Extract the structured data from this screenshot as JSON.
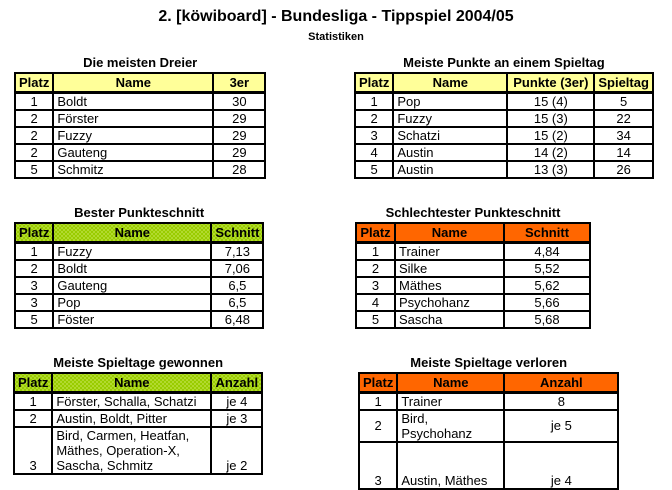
{
  "header": {
    "title": "2. [köwiboard] - Bundesliga - Tippspiel 2004/05",
    "subtitle": "Statistiken"
  },
  "colors": {
    "header_yellow": "#FFFF99",
    "header_green": "#99CC00",
    "header_orange": "#FF6600",
    "border": "#000000",
    "row_background": "#FFFFFF",
    "text": "#000000"
  },
  "tables": [
    {
      "title": "Die meisten Dreier",
      "header_style": "yellow",
      "columns": [
        "Platz",
        "Name",
        "3er"
      ],
      "rows": [
        [
          "1",
          "Boldt",
          "30"
        ],
        [
          "2",
          "Förster",
          "29"
        ],
        [
          "2",
          "Fuzzy",
          "29"
        ],
        [
          "2",
          "Gauteng",
          "29"
        ],
        [
          "5",
          "Schmitz",
          "28"
        ]
      ]
    },
    {
      "title": "Meiste Punkte an einem Spieltag",
      "header_style": "yellow",
      "columns": [
        "Platz",
        "Name",
        "Punkte (3er)",
        "Spieltag"
      ],
      "rows": [
        [
          "1",
          "Pop",
          "15 (4)",
          "5"
        ],
        [
          "2",
          "Fuzzy",
          "15 (3)",
          "22"
        ],
        [
          "3",
          "Schatzi",
          "15 (2)",
          "34"
        ],
        [
          "4",
          "Austin",
          "14 (2)",
          "14"
        ],
        [
          "5",
          "Austin",
          "13 (3)",
          "26"
        ]
      ]
    },
    {
      "title": "Bester Punkteschnitt",
      "header_style": "green",
      "columns": [
        "Platz",
        "Name",
        "Schnitt"
      ],
      "rows": [
        [
          "1",
          "Fuzzy",
          "7,13"
        ],
        [
          "2",
          "Boldt",
          "7,06"
        ],
        [
          "3",
          "Gauteng",
          "6,5"
        ],
        [
          "3",
          "Pop",
          "6,5"
        ],
        [
          "5",
          "Föster",
          "6,48"
        ]
      ]
    },
    {
      "title": "Schlechtester Punkteschnitt",
      "header_style": "orange",
      "columns": [
        "Platz",
        "Name",
        "Schnitt"
      ],
      "rows": [
        [
          "1",
          "Trainer",
          "4,84"
        ],
        [
          "2",
          "Silke",
          "5,52"
        ],
        [
          "3",
          "Mäthes",
          "5,62"
        ],
        [
          "4",
          "Psychohanz",
          "5,66"
        ],
        [
          "5",
          "Sascha",
          "5,68"
        ]
      ]
    },
    {
      "title": "Meiste Spieltage gewonnen",
      "header_style": "green",
      "columns": [
        "Platz",
        "Name",
        "Anzahl"
      ],
      "rows": [
        [
          "1",
          "Förster, Schalla, Schatzi",
          "je 4"
        ],
        [
          "2",
          "Austin, Boldt, Pitter",
          "je 3"
        ],
        [
          "3",
          "Bird, Carmen, Heatfan,\nMäthes, Operation-X,\nSascha, Schmitz",
          "je 2"
        ]
      ]
    },
    {
      "title": "Meiste Spieltage verloren",
      "header_style": "orange",
      "columns": [
        "Platz",
        "Name",
        "Anzahl"
      ],
      "rows": [
        [
          "1",
          "Trainer",
          "8"
        ],
        [
          "2",
          "Bird, Psychohanz",
          "je 5"
        ],
        [
          "3",
          "Austin, Mäthes",
          "je 4"
        ]
      ]
    }
  ]
}
